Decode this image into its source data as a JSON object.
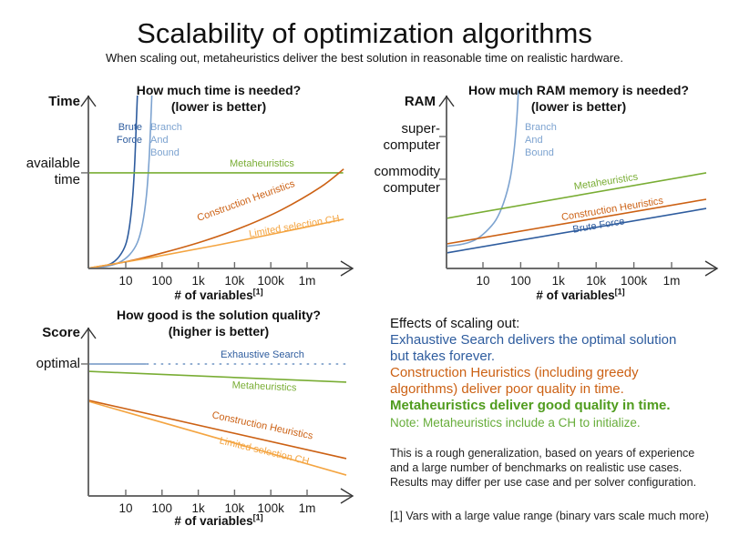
{
  "header": {
    "title": "Scalability of optimization algorithms",
    "subtitle": "When scaling out, metaheuristics deliver the best solution in reasonable time on realistic hardware."
  },
  "colors": {
    "dark_blue": "#2e5c9e",
    "light_blue": "#7da3d0",
    "pale_blue": "#93afd2",
    "green": "#79ad34",
    "dark_green": "#509c1e",
    "note_green": "#67ad3a",
    "orange": "#cc6114",
    "light_orange": "#f4a542",
    "axis": "#6b6b6b",
    "text": "#1a1a1a"
  },
  "chart_data": [
    {
      "type": "line",
      "title": "How much time is needed?",
      "subtitle": "(lower is better)",
      "y_axis_label": "Time",
      "y_tick_labels": [
        "available\ntime"
      ],
      "y_ticks": [
        0.553
      ],
      "x_axis_label": "# of variables",
      "x_axis_footnote_mark": "[1]",
      "x_ticks": [
        "10",
        "100",
        "1k",
        "10k",
        "100k",
        "1m"
      ],
      "x_scale": "log",
      "series": [
        {
          "id": "brute-force",
          "name": "Brute Force",
          "label": "Brute\nForce",
          "color": "#2e5c9e",
          "behavior": "exponential blow-up, exceeds available time near 10-20 variables",
          "points": [
            [
              0,
              0.002
            ],
            [
              0.05,
              0.01
            ],
            [
              0.09,
              0.03
            ],
            [
              0.12,
              0.07
            ],
            [
              0.145,
              0.14
            ],
            [
              0.16,
              0.25
            ],
            [
              0.172,
              0.42
            ],
            [
              0.18,
              0.62
            ],
            [
              0.186,
              0.85
            ],
            [
              0.19,
              1.0
            ]
          ]
        },
        {
          "id": "branch-and-bound",
          "name": "Branch And Bound",
          "label": "Branch\nAnd\nBound",
          "color": "#7da3d0",
          "behavior": "exponential blow-up slightly later than brute force",
          "points": [
            [
              0,
              0.002
            ],
            [
              0.07,
              0.012
            ],
            [
              0.12,
              0.035
            ],
            [
              0.16,
              0.08
            ],
            [
              0.19,
              0.15
            ],
            [
              0.21,
              0.26
            ],
            [
              0.225,
              0.42
            ],
            [
              0.235,
              0.62
            ],
            [
              0.242,
              0.85
            ],
            [
              0.246,
              1.0
            ]
          ]
        },
        {
          "id": "metaheuristics",
          "name": "Metaheuristics",
          "label": "Metaheuristics",
          "color": "#79ad34",
          "behavior": "constant at available time",
          "points": [
            [
              0,
              0.553
            ],
            [
              0.988,
              0.553
            ]
          ]
        },
        {
          "id": "construction-heuristics",
          "name": "Construction Heuristics",
          "label": "Construction Heuristics",
          "color": "#cc6114",
          "behavior": "polynomial growth, crosses available time near 1m variables",
          "points": [
            [
              0,
              0.002
            ],
            [
              0.15,
              0.04
            ],
            [
              0.3,
              0.095
            ],
            [
              0.45,
              0.16
            ],
            [
              0.6,
              0.24
            ],
            [
              0.75,
              0.34
            ],
            [
              0.9,
              0.47
            ],
            [
              0.99,
              0.575
            ]
          ]
        },
        {
          "id": "limited-selection-ch",
          "name": "Limited selection CH",
          "label": "Limited selection CH",
          "color": "#f4a542",
          "behavior": "slow near-linear growth, stays under available time",
          "points": [
            [
              0,
              0.002
            ],
            [
              0.25,
              0.065
            ],
            [
              0.5,
              0.135
            ],
            [
              0.75,
              0.21
            ],
            [
              0.99,
              0.285
            ]
          ]
        }
      ]
    },
    {
      "type": "line",
      "title": "How much RAM memory is needed?",
      "subtitle": "(lower is better)",
      "y_axis_label": "RAM",
      "y_tick_labels": [
        "super-\ncomputer",
        "commodity\ncomputer"
      ],
      "y_ticks": [
        0.763,
        0.516
      ],
      "x_axis_label": "# of variables",
      "x_axis_footnote_mark": "[1]",
      "x_ticks": [
        "10",
        "100",
        "1k",
        "10k",
        "100k",
        "1m"
      ],
      "x_scale": "log",
      "series": [
        {
          "id": "branch-and-bound",
          "name": "Branch And Bound",
          "label": "Branch\nAnd\nBound",
          "color": "#7da3d0",
          "behavior": "exponential blow-up past super-computer RAM before 100 variables",
          "points": [
            [
              0,
              0.128
            ],
            [
              0.06,
              0.14
            ],
            [
              0.11,
              0.165
            ],
            [
              0.15,
              0.21
            ],
            [
              0.19,
              0.28
            ],
            [
              0.22,
              0.38
            ],
            [
              0.245,
              0.52
            ],
            [
              0.26,
              0.68
            ],
            [
              0.27,
              0.85
            ],
            [
              0.277,
              1.03
            ]
          ]
        },
        {
          "id": "metaheuristics",
          "name": "Metaheuristics",
          "label": "Metaheuristics",
          "color": "#79ad34",
          "behavior": "linear growth, stays near commodity computer RAM",
          "points": [
            [
              0,
              0.29
            ],
            [
              1,
              0.553
            ]
          ]
        },
        {
          "id": "construction-heuristics",
          "name": "Construction Heuristics",
          "label": "Construction Heuristics",
          "color": "#cc6114",
          "behavior": "linear growth below metaheuristics",
          "points": [
            [
              0,
              0.142
            ],
            [
              1,
              0.4
            ]
          ]
        },
        {
          "id": "brute-force",
          "name": "Brute Force",
          "label": "Brute Force",
          "color": "#2e5c9e",
          "behavior": "lowest linear growth",
          "points": [
            [
              0,
              0.09
            ],
            [
              1,
              0.347
            ]
          ]
        }
      ]
    },
    {
      "type": "line",
      "title": "How good is the solution quality?",
      "subtitle": "(higher is better)",
      "y_axis_label": "Score",
      "y_tick_labels": [
        "optimal"
      ],
      "y_ticks": [
        0.784
      ],
      "x_axis_label": "# of variables",
      "x_axis_footnote_mark": "[1]",
      "x_ticks": [
        "10",
        "100",
        "1k",
        "10k",
        "100k",
        "1m"
      ],
      "x_scale": "log",
      "series": [
        {
          "id": "exhaustive-search",
          "name": "Exhaustive Search",
          "label": "Exhaustive Search",
          "color": "#93afd2",
          "behavior": "constant at optimal; dashed beyond ~30 variables (takes forever)",
          "points": [
            [
              0,
              0.784
            ],
            [
              1,
              0.784
            ]
          ],
          "dash_from": 0.225,
          "dash": "2.5,5.5",
          "width": 2
        },
        {
          "id": "metaheuristics",
          "name": "Metaheuristics",
          "label": "Metaheuristics",
          "color": "#79ad34",
          "behavior": "slightly below optimal, degrades very slowly",
          "points": [
            [
              0,
              0.74
            ],
            [
              1,
              0.676
            ]
          ]
        },
        {
          "id": "construction-heuristics",
          "name": "Construction Heuristics",
          "label": "Construction Heuristics",
          "color": "#cc6114",
          "behavior": "much lower quality, declines with scale",
          "points": [
            [
              0,
              0.568
            ],
            [
              1,
              0.222
            ]
          ]
        },
        {
          "id": "limited-selection-ch",
          "name": "Limited selection CH",
          "label": "Limited selection CH",
          "color": "#f4a542",
          "behavior": "lowest quality, declines fastest",
          "points": [
            [
              0,
              0.562
            ],
            [
              1,
              0.124
            ]
          ]
        }
      ]
    }
  ],
  "panel": {
    "heading": "Effects of scaling out:",
    "statements": [
      {
        "text": "Exhaustive Search delivers the optimal solution\nbut takes forever.",
        "color_key": "dark_blue",
        "bold": false
      },
      {
        "text": "Construction Heuristics (including greedy\nalgorithms) deliver poor quality in time.",
        "color_key": "orange",
        "bold": false
      },
      {
        "text": "Metaheuristics deliver good quality in time.",
        "color_key": "dark_green",
        "bold": true
      }
    ],
    "note": "Note: Metaheuristics include a CH to initialize.",
    "disclaimer": "This is a rough generalization, based on years of experience\nand a large number of benchmarks on realistic use cases.\nResults may differ per use case and per solver configuration.",
    "footnote": "[1] Vars with a large value range (binary vars scale much more)"
  }
}
